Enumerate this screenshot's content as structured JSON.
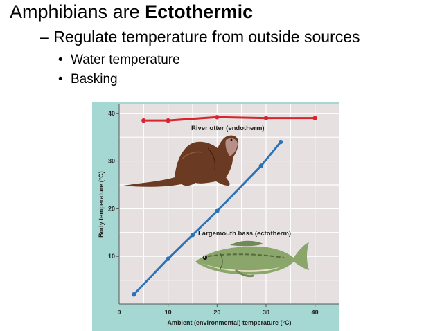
{
  "slide": {
    "title_prefix": "Amphibians are ",
    "title_bold": "Ectothermic",
    "sub_bullet_dash": "–",
    "sub_bullet": "Regulate temperature from outside sources",
    "bullet_marker": "•",
    "bullets": [
      "Water temperature",
      "Basking"
    ]
  },
  "colors": {
    "teal_background": "#a6d8d3",
    "plot_background": "#e6e1e0",
    "otter_series": "#d7262e",
    "bass_series": "#2b72b8",
    "otter_fur": "#6b3a22",
    "bass_body": "#8aa66a"
  },
  "icons": [
    "otter-illustration",
    "bass-illustration"
  ],
  "chart_data": {
    "type": "line",
    "xlabel": "Ambient (environmental) temperature (°C)",
    "ylabel": "Body temperature (°C)",
    "xlim": [
      0,
      45
    ],
    "ylim": [
      0,
      42
    ],
    "x_ticks": [
      0,
      10,
      20,
      30,
      40
    ],
    "y_ticks": [
      10,
      20,
      30,
      40
    ],
    "grid": true,
    "series": [
      {
        "name": "River otter (endotherm)",
        "color": "#d7262e",
        "x": [
          5,
          10,
          20,
          30,
          40
        ],
        "y": [
          38.5,
          38.5,
          39.2,
          39,
          39
        ]
      },
      {
        "name": "Largemouth bass (ectotherm)",
        "color": "#2b72b8",
        "x": [
          3,
          10,
          15,
          20,
          29,
          33
        ],
        "y": [
          2,
          9.5,
          14.5,
          19.5,
          29,
          34
        ]
      }
    ]
  }
}
